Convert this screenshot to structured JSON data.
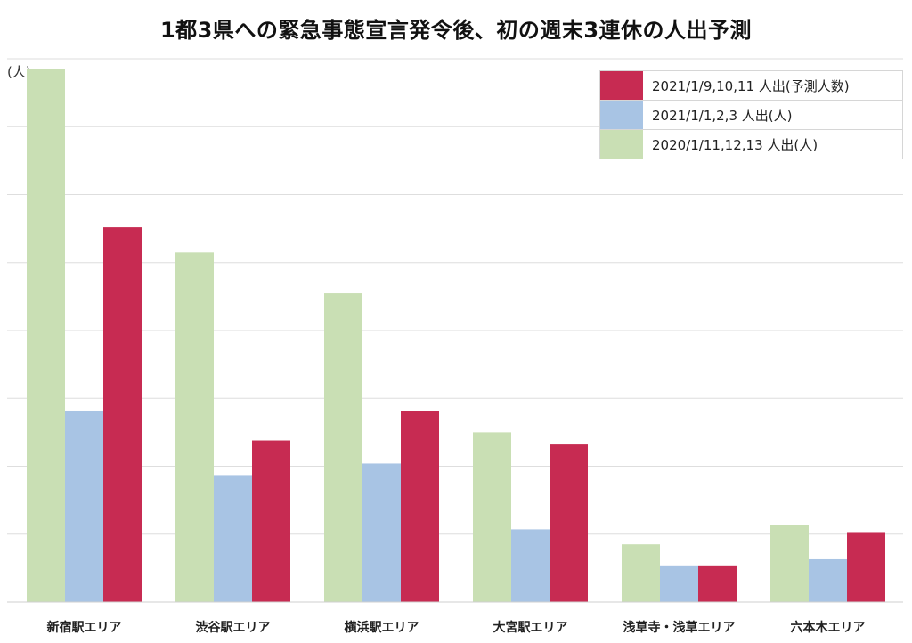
{
  "chart_data": {
    "type": "bar",
    "title": "1都3県への緊急事態宣言発令後、初の週末3連休の人出予測",
    "ylabel": "(人)",
    "xlabel": "",
    "ylim": [
      0,
      80
    ],
    "grid": true,
    "legend_position": "top-right",
    "categories": [
      "新宿駅エリア",
      "渋谷駅エリア",
      "横浜駅エリア",
      "大宮駅エリア",
      "浅草寺・浅草エリア",
      "六本木エリア"
    ],
    "series": [
      {
        "name": "2020/1/11,12,13 人出(人)",
        "color": "#c9dfb4",
        "values": [
          78.5,
          51.5,
          45.5,
          25.0,
          8.5,
          11.3
        ]
      },
      {
        "name": "2021/1/1,2,3 人出(人)",
        "color": "#a8c4e4",
        "values": [
          28.2,
          18.7,
          20.4,
          10.7,
          5.4,
          6.3
        ]
      },
      {
        "name": "2021/1/9,10,11 人出(予測人数)",
        "color": "#c72b52",
        "values": [
          55.2,
          23.8,
          28.1,
          23.2,
          5.4,
          10.3
        ]
      }
    ],
    "legend_order": [
      2,
      1,
      0
    ]
  }
}
